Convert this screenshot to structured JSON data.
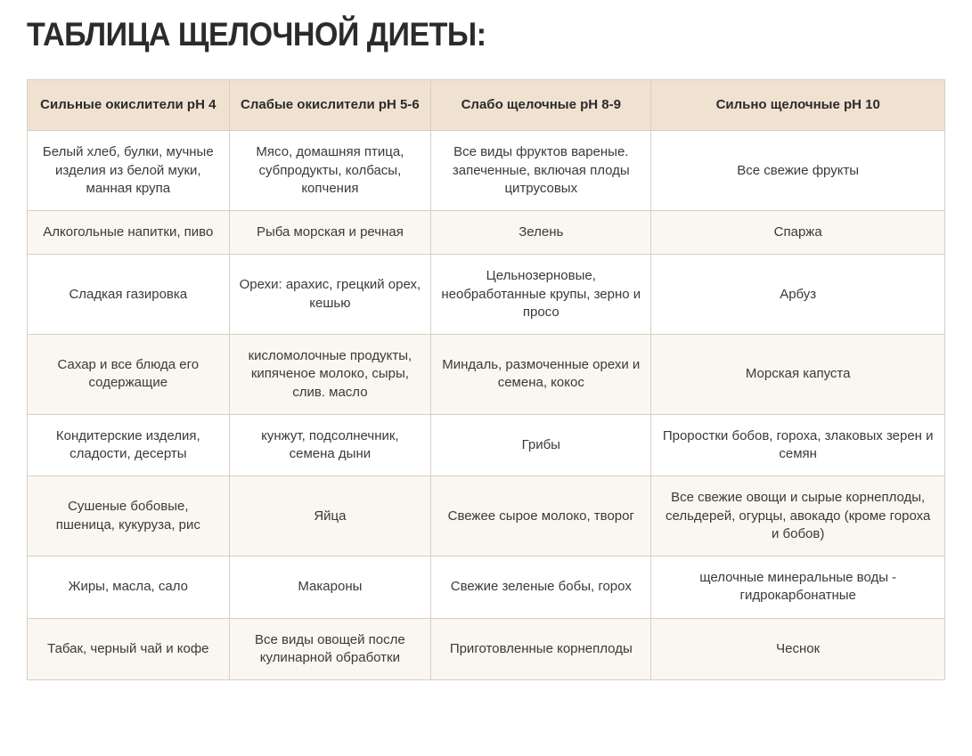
{
  "title": "ТАБЛИЦА ЩЕЛОЧНОЙ ДИЕТЫ:",
  "table": {
    "columns": [
      "Сильные окислители pH 4",
      "Слабые окислители pH 5-6",
      "Слабо щелочные pH 8-9",
      "Сильно щелочные pH 10"
    ],
    "rows": [
      [
        "Белый хлеб, булки, мучные изделия из белой муки, манная крупа",
        "Мясо, домашняя птица, субпродукты, колбасы, копчения",
        "Все виды фруктов вареные. запеченные,  включая плоды цитрусовых",
        "Все свежие фрукты"
      ],
      [
        "Алкогольные напитки, пиво",
        "Рыба морская и речная",
        "Зелень",
        "Спаржа"
      ],
      [
        "Сладкая газировка",
        "Орехи: арахис, грецкий орех, кешью",
        "Цельнозерновые, необработанные крупы, зерно и просо",
        "Арбуз"
      ],
      [
        "Сахар и все блюда его содержащие",
        "кисломолочные продукты, кипяченое молоко, сыры, слив. масло",
        "Миндаль, размоченные орехи и семена, кокос",
        "Морская капуста"
      ],
      [
        "Кондитерские изделия, сладости, десерты",
        "кунжут, подсолнечник, семена дыни",
        "Грибы",
        "Проростки бобов, гороха, злаковых зерен и семян"
      ],
      [
        "Сушеные бобовые, пшеница, кукуруза, рис",
        "Яйца",
        "Свежее сырое молоко, творог",
        "Все свежие овощи и сырые корнеплоды, сельдерей, огурцы, авокадо (кроме гороха и бобов)"
      ],
      [
        "Жиры, масла, сало",
        "Макароны",
        "Свежие зеленые бобы, горох",
        "щелочные минеральные воды - гидрокарбонатные"
      ],
      [
        "Табак, черный чай и кофе",
        "Все виды овощей после кулинарной обработки",
        "Приготовленные корнеплоды",
        "Чеснок"
      ]
    ]
  },
  "styling": {
    "header_bg": "#efe2d1",
    "row_alt_bg": "#faf6f0",
    "border_color": "#d8cfc3",
    "text_color": "#3a3a3a",
    "title_color": "#2b2b2b",
    "title_fontsize": 34,
    "cell_fontsize": 15,
    "column_widths_pct": [
      22,
      22,
      24,
      32
    ]
  }
}
